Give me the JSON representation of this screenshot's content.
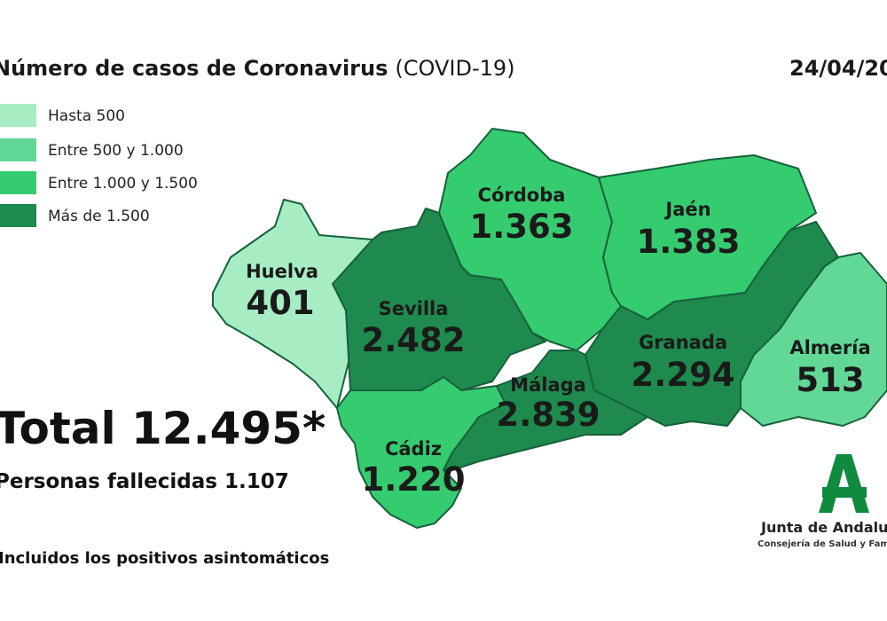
{
  "header": {
    "title": "Número de casos de Coronavirus",
    "title_note": "(COVID-19)",
    "date": "24/04/2020"
  },
  "legend": [
    {
      "label": "Hasta 500",
      "color": "#a6edc3"
    },
    {
      "label": "Entre 500 y 1.000",
      "color": "#62d896"
    },
    {
      "label": "Entre 1.000 y 1.500",
      "color": "#35cc70"
    },
    {
      "label": "Más de 1.500",
      "color": "#1e8a4d"
    }
  ],
  "provinces": [
    {
      "name": "Huelva",
      "cases": "401",
      "color": "#a6edc3"
    },
    {
      "name": "Sevilla",
      "cases": "2.482",
      "color": "#1e8a4d"
    },
    {
      "name": "Córdoba",
      "cases": "1.363",
      "color": "#35cc70"
    },
    {
      "name": "Jaén",
      "cases": "1.383",
      "color": "#35cc70"
    },
    {
      "name": "Cádiz",
      "cases": "1.220",
      "color": "#35cc70"
    },
    {
      "name": "Málaga",
      "cases": "2.839",
      "color": "#1e8a4d"
    },
    {
      "name": "Granada",
      "cases": "2.294",
      "color": "#1e8a4d"
    },
    {
      "name": "Almería",
      "cases": "513",
      "color": "#62d896"
    }
  ],
  "total": "Total 12.495*",
  "deaths": "Personas fallecidas 1.107",
  "footnote": "Incluidos los positivos asintomáticos",
  "logo": {
    "name": "Junta de Andalucía",
    "department": "Consejería de Salud y Familias"
  }
}
